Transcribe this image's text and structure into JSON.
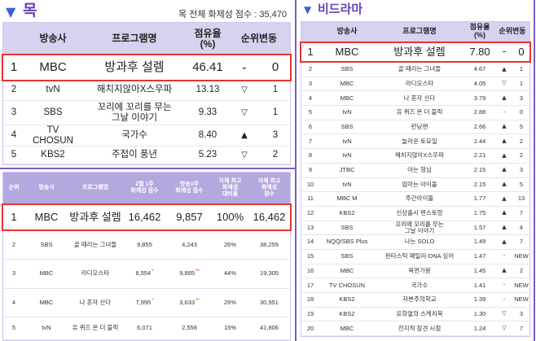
{
  "colors": {
    "section_title": "#6a41b9",
    "triangle_icon": "#3b62cc",
    "divider": "#7b5cc6",
    "header_bg": "#d8d1f0",
    "buzz_header_bg": "#b4a8df",
    "highlight_border": "#e8332f",
    "asterisk": "#e8332f"
  },
  "left": {
    "title_icon": "▼",
    "title": "목",
    "total_label": "목 전체 화제성 점수 : 35,470",
    "share_table": {
      "headers": {
        "broadcaster": "방송사",
        "program": "프로그램명",
        "share": "점유율\n(%)",
        "change": "순위변동"
      },
      "rows": [
        {
          "rank": "1",
          "broadcaster": "MBC",
          "program": "방과후 설렘",
          "share": "46.41",
          "arrow": "-",
          "change": "0"
        },
        {
          "rank": "2",
          "broadcaster": "tvN",
          "program": "해치지않아X스우파",
          "share": "13.13",
          "arrow": "▽",
          "change": "1"
        },
        {
          "rank": "3",
          "broadcaster": "SBS",
          "program": "꼬리에 꼬리를 무는\n그날 이야기",
          "share": "9.33",
          "arrow": "▽",
          "change": "1"
        },
        {
          "rank": "4",
          "broadcaster": "TV\nCHOSUN",
          "program": "국가수",
          "share": "8.40",
          "arrow": "▲",
          "change": "3"
        },
        {
          "rank": "5",
          "broadcaster": "KBS2",
          "program": "주접이 풍년",
          "share": "5.23",
          "arrow": "▽",
          "change": "2"
        }
      ]
    },
    "buzz_table": {
      "headers": {
        "rank": "순위",
        "broadcaster": "방송사",
        "program": "프로그램명",
        "week_score": "2월 1주\n화제성 점수",
        "premiere_score": "방송1주\n화제성 점수",
        "best_ratio": "자체 최고\n화제성\n대비율",
        "best_score": "자체 최고\n화제성\n점수"
      },
      "rows": [
        {
          "rank": "1",
          "broadcaster": "MBC",
          "program": "방과후 설렘",
          "week_score": "16,462",
          "premiere_score": "9,857",
          "best_ratio": "100%",
          "best_score": "16,462"
        },
        {
          "rank": "2",
          "broadcaster": "SBS",
          "program": "골 때리는 그녀들",
          "week_score": "9,855",
          "premiere_score": "4,243",
          "best_ratio": "26%",
          "best_score": "38,259"
        },
        {
          "rank": "3",
          "broadcaster": "MBC",
          "program": "라디오스타",
          "week_score": "8,554",
          "week_mark": "*",
          "premiere_score": "9,885",
          "premiere_mark": "**",
          "best_ratio": "44%",
          "best_score": "19,305"
        },
        {
          "rank": "4",
          "broadcaster": "MBC",
          "program": "나 혼자 산다",
          "week_score": "7,995",
          "week_mark": "*",
          "premiere_score": "3,633",
          "premiere_mark": "**",
          "best_ratio": "26%",
          "best_score": "30,951"
        },
        {
          "rank": "5",
          "broadcaster": "tvN",
          "program": "유 퀴즈 온 더 블럭",
          "week_score": "6,071",
          "premiere_score": "2,558",
          "best_ratio": "15%",
          "best_score": "41,806"
        }
      ]
    }
  },
  "right": {
    "title_icon": "▼",
    "title": "비드라마",
    "share_table": {
      "headers": {
        "broadcaster": "방송사",
        "program": "프로그램명",
        "share": "점유율\n(%)",
        "change": "순위변동"
      },
      "rows": [
        {
          "rank": "1",
          "broadcaster": "MBC",
          "program": "방과후 설렘",
          "share": "7.80",
          "arrow": "-",
          "change": "0"
        },
        {
          "rank": "2",
          "broadcaster": "SBS",
          "program": "골 때리는 그녀들",
          "share": "4.67",
          "arrow": "▲",
          "change": "1"
        },
        {
          "rank": "3",
          "broadcaster": "MBC",
          "program": "라디오스타",
          "share": "4.05",
          "arrow": "▽",
          "change": "1"
        },
        {
          "rank": "4",
          "broadcaster": "MBC",
          "program": "나 혼자 산다",
          "share": "3.79",
          "arrow": "▲",
          "change": "3"
        },
        {
          "rank": "5",
          "broadcaster": "tvN",
          "program": "유 퀴즈 온 더 블럭",
          "share": "2.88",
          "arrow": "-",
          "change": "0"
        },
        {
          "rank": "6",
          "broadcaster": "SBS",
          "program": "런닝맨",
          "share": "2.66",
          "arrow": "▲",
          "change": "5"
        },
        {
          "rank": "7",
          "broadcaster": "tvN",
          "program": "놀라운 토요일",
          "share": "2.44",
          "arrow": "▲",
          "change": "2"
        },
        {
          "rank": "8",
          "broadcaster": "tvN",
          "program": "해치지않아X스우파",
          "share": "2.21",
          "arrow": "▲",
          "change": "2"
        },
        {
          "rank": "9",
          "broadcaster": "JTBC",
          "program": "아는 형님",
          "share": "2.15",
          "arrow": "▲",
          "change": "3"
        },
        {
          "rank": "10",
          "broadcaster": "tvN",
          "program": "엄마는 아이돌",
          "share": "2.15",
          "arrow": "▲",
          "change": "5"
        },
        {
          "rank": "11",
          "broadcaster": "MBC M",
          "program": "주간아이돌",
          "share": "1.77",
          "arrow": "▲",
          "change": "13"
        },
        {
          "rank": "12",
          "broadcaster": "KBS2",
          "program": "신상출시 편스토랑",
          "share": "1.75",
          "arrow": "▲",
          "change": "7"
        },
        {
          "rank": "13",
          "broadcaster": "SBS",
          "program": "꼬리에 꼬리를 무는\n그날 이야기",
          "share": "1.57",
          "arrow": "▲",
          "change": "4"
        },
        {
          "rank": "14",
          "broadcaster": "NQQ/SBS Plus",
          "program": "나는 SOLO",
          "share": "1.49",
          "arrow": "▲",
          "change": "7"
        },
        {
          "rank": "15",
          "broadcaster": "SBS",
          "program": "판타스틱 패밀리-DNA 싱어",
          "share": "1.47",
          "arrow": "-",
          "change": "NEW"
        },
        {
          "rank": "16",
          "broadcaster": "MBC",
          "program": "복면가왕",
          "share": "1.45",
          "arrow": "▲",
          "change": "2"
        },
        {
          "rank": "17",
          "broadcaster": "TV CHOSUN",
          "program": "국가수",
          "share": "1.41",
          "arrow": "-",
          "change": "NEW"
        },
        {
          "rank": "18",
          "broadcaster": "KBS2",
          "program": "자본주의학교",
          "share": "1.39",
          "arrow": "-",
          "change": "NEW"
        },
        {
          "rank": "19",
          "broadcaster": "KBS2",
          "program": "유희열의 스케치북",
          "share": "1.30",
          "arrow": "▽",
          "change": "3"
        },
        {
          "rank": "20",
          "broadcaster": "MBC",
          "program": "전지적 참견 시점",
          "share": "1.24",
          "arrow": "▽",
          "change": "7"
        }
      ]
    }
  }
}
